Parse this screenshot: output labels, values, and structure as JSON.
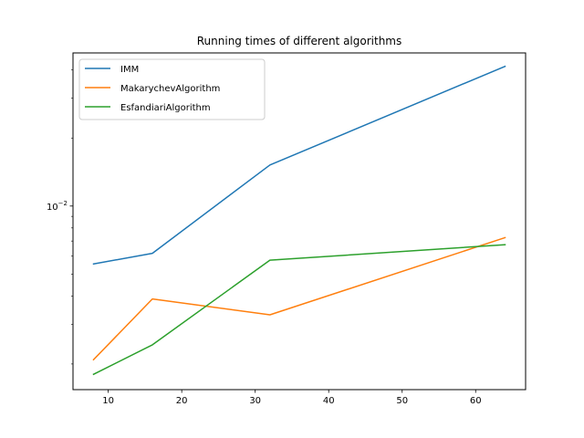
{
  "chart_data": {
    "type": "line",
    "title": "Running times of different algorithms",
    "xlabel": "",
    "ylabel": "",
    "x_scale": "linear",
    "y_scale": "log",
    "xlim": [
      5.2,
      66.8
    ],
    "ylim": [
      0.00154,
      0.0476
    ],
    "grid": false,
    "legend_position": "top-left",
    "x": [
      8,
      16,
      32,
      64
    ],
    "x_ticks": [
      10,
      20,
      30,
      40,
      50,
      60
    ],
    "y_ticks": [
      {
        "value": 0.01,
        "base": "10",
        "exponent": "−2"
      }
    ],
    "series": [
      {
        "name": "IMM",
        "color": "#1f77b4",
        "values": [
          0.00554,
          0.00618,
          0.0152,
          0.0415
        ]
      },
      {
        "name": "MakarychevAlgorithm",
        "color": "#ff7f0e",
        "values": [
          0.00209,
          0.00388,
          0.0033,
          0.00725
        ]
      },
      {
        "name": "EsfandiariAlgorithm",
        "color": "#2ca02c",
        "values": [
          0.0018,
          0.00243,
          0.00576,
          0.00674
        ]
      }
    ]
  }
}
